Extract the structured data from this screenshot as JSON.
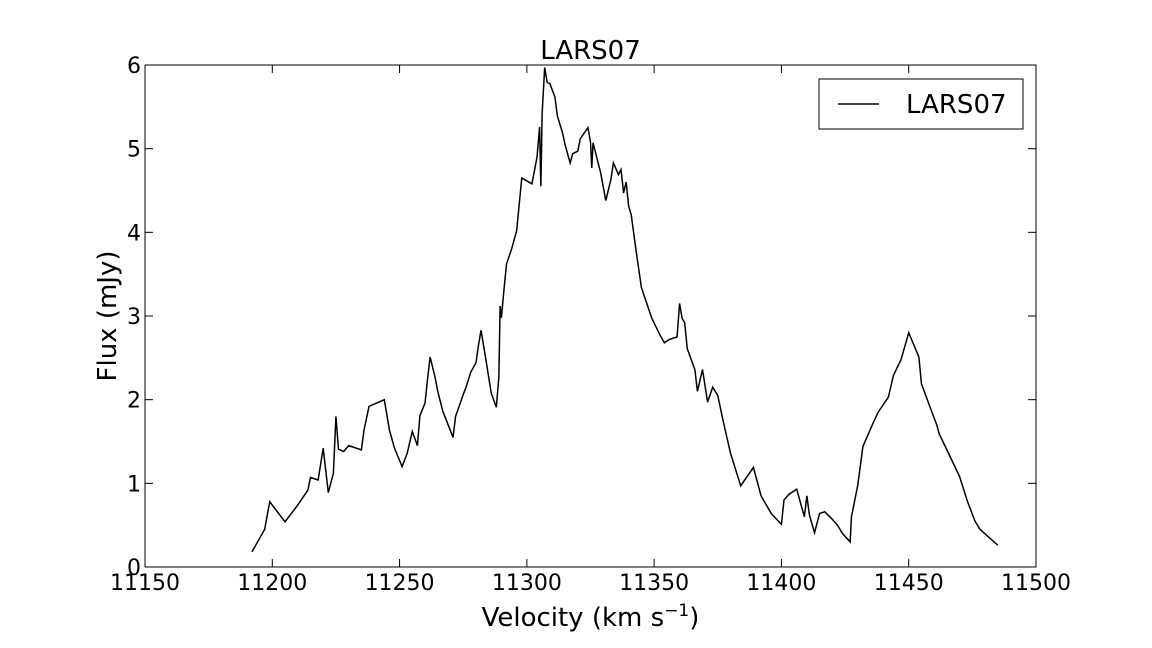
{
  "chart_data": {
    "type": "line",
    "title": "LARS07",
    "xlabel": "Velocity  (km s",
    "xlabel_sup": "−1",
    "xlabel_end": ")",
    "ylabel": "Flux (mJy)",
    "xlim": [
      11150,
      11500
    ],
    "ylim": [
      0,
      6
    ],
    "xticks": [
      11150,
      11200,
      11250,
      11300,
      11350,
      11400,
      11450,
      11500
    ],
    "yticks": [
      0,
      1,
      2,
      3,
      4,
      5,
      6
    ],
    "grid": false,
    "legend_position": "top-right",
    "line_color": "#000000",
    "series": [
      {
        "name": "LARS07",
        "x": [
          11192,
          11197,
          11199,
          11205,
          11210,
          11214,
          11215,
          11218,
          11220,
          11222,
          11224,
          11225,
          11226,
          11228,
          11230,
          11235,
          11236,
          11238,
          11244,
          11246,
          11248,
          11251,
          11253,
          11255,
          11257,
          11258,
          11260,
          11261,
          11262,
          11264,
          11265,
          11267,
          11271,
          11272,
          11275,
          11276,
          11278,
          11280,
          11281,
          11282,
          11284,
          11286,
          11288,
          11289,
          11289.5,
          11290,
          11291,
          11292,
          11294,
          11296,
          11298,
          11302,
          11304,
          11305,
          11305.5,
          11306,
          11307,
          11308,
          11309,
          11311,
          11312,
          11314,
          11315,
          11317,
          11318,
          11320,
          11321,
          11324,
          11325,
          11325.5,
          11326,
          11329,
          11331,
          11333,
          11334,
          11336,
          11337,
          11338,
          11339,
          11340,
          11341,
          11343,
          11345,
          11347,
          11349,
          11352,
          11354,
          11356,
          11359,
          11360,
          11361,
          11362,
          11363,
          11366,
          11367,
          11369,
          11371,
          11373,
          11375,
          11377,
          11380,
          11384,
          11389,
          11392,
          11396,
          11400,
          11401,
          11403,
          11406,
          11409,
          11410,
          11411,
          11413,
          11415,
          11417,
          11420,
          11422,
          11424,
          11427,
          11427.5,
          11430,
          11432,
          11436,
          11438,
          11442,
          11444,
          11447,
          11450,
          11454,
          11455,
          11459,
          11461,
          11462,
          11465,
          11470,
          11473,
          11476,
          11478,
          11485
        ],
        "y": [
          0.18,
          0.45,
          0.78,
          0.54,
          0.74,
          0.92,
          1.07,
          1.04,
          1.42,
          0.89,
          1.12,
          1.8,
          1.41,
          1.38,
          1.45,
          1.4,
          1.63,
          1.92,
          2.0,
          1.64,
          1.42,
          1.2,
          1.36,
          1.62,
          1.45,
          1.81,
          1.96,
          2.25,
          2.51,
          2.26,
          2.1,
          1.86,
          1.55,
          1.8,
          2.06,
          2.14,
          2.33,
          2.44,
          2.65,
          2.83,
          2.46,
          2.08,
          1.91,
          2.27,
          3.12,
          2.98,
          3.31,
          3.62,
          3.8,
          4.02,
          4.65,
          4.58,
          4.9,
          5.26,
          4.55,
          5.42,
          5.97,
          5.79,
          5.78,
          5.62,
          5.39,
          5.19,
          5.05,
          4.83,
          4.94,
          4.97,
          5.12,
          5.25,
          5.08,
          4.77,
          5.07,
          4.71,
          4.38,
          4.63,
          4.83,
          4.69,
          4.75,
          4.47,
          4.6,
          4.31,
          4.21,
          3.76,
          3.34,
          3.16,
          2.98,
          2.79,
          2.68,
          2.72,
          2.75,
          3.15,
          2.97,
          2.92,
          2.61,
          2.36,
          2.1,
          2.36,
          1.97,
          2.15,
          2.05,
          1.76,
          1.36,
          0.97,
          1.19,
          0.85,
          0.64,
          0.51,
          0.8,
          0.87,
          0.93,
          0.6,
          0.85,
          0.62,
          0.41,
          0.64,
          0.66,
          0.57,
          0.5,
          0.4,
          0.3,
          0.6,
          0.98,
          1.44,
          1.72,
          1.85,
          2.03,
          2.29,
          2.48,
          2.8,
          2.51,
          2.19,
          1.86,
          1.7,
          1.59,
          1.4,
          1.08,
          0.79,
          0.55,
          0.45,
          0.26
        ]
      }
    ]
  }
}
